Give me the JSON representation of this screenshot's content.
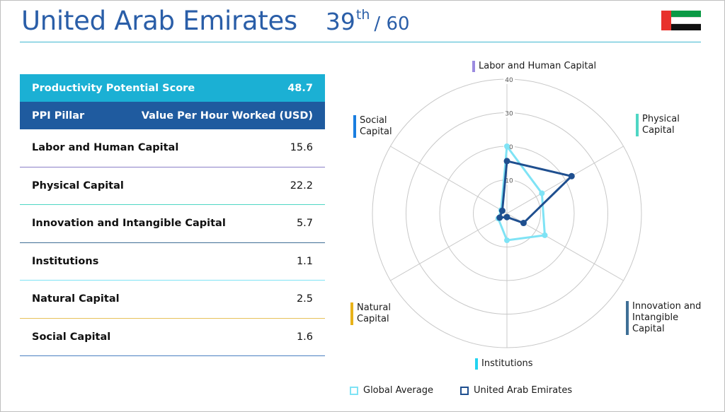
{
  "header": {
    "country": "United Arab Emirates",
    "rank": "39",
    "rank_suffix": "th",
    "rank_total": "/ 60"
  },
  "table": {
    "score_label": "Productivity Potential Score",
    "score_value": "48.7",
    "pillar_header": "PPI Pillar",
    "value_header": "Value Per Hour Worked (USD)",
    "rows": [
      {
        "label": "Labor and Human Capital",
        "value": "15.6"
      },
      {
        "label": "Physical Capital",
        "value": "22.2"
      },
      {
        "label": "Innovation and Intangible Capital",
        "value": "5.7"
      },
      {
        "label": "Institutions",
        "value": "1.1"
      },
      {
        "label": "Natural Capital",
        "value": "2.5"
      },
      {
        "label": "Social Capital",
        "value": "1.6"
      }
    ]
  },
  "chart_data": {
    "type": "radar",
    "axes": [
      "Labor and Human Capital",
      "Physical Capital",
      "Innovation and Intangible Capital",
      "Institutions",
      "Natural Capital",
      "Social Capital"
    ],
    "axis_colors": [
      "#9b8be0",
      "#4fd6c4",
      "#3f6f96",
      "#22d3f0",
      "#e8b21a",
      "#1a7ee0"
    ],
    "rlim": [
      0,
      40
    ],
    "ticks": [
      10,
      20,
      30,
      40
    ],
    "series": [
      {
        "name": "Global Average",
        "color": "#7fe3f5",
        "values": [
          20,
          12,
          13,
          8,
          3,
          2
        ]
      },
      {
        "name": "United Arab Emirates",
        "color": "#1f4f8f",
        "values": [
          15.6,
          22.2,
          5.7,
          1.1,
          2.5,
          1.6
        ]
      }
    ]
  }
}
